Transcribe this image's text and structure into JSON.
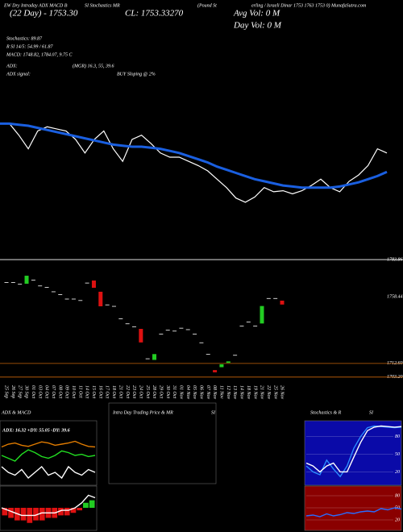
{
  "header": {
    "name_left": "EW Dry Intraday ADX MACD B",
    "name_mid": "SI Stochastics MR",
    "name_pair": "(Pound St",
    "name_right": "erling / Israeli Dinar 1753 1763 1753 0) MunafaSutra.com",
    "day_change": "(22 Day) - 1753.30",
    "close": "CL: 1753.33270",
    "avg_vol": "Avg Vol: 0  M",
    "day_vol": "Day Vol: 0  M"
  },
  "stats": {
    "stochastics": "Stochastics: 89.87",
    "rsi": "R      SI 14/5: 54.99 / 61.87",
    "macd": "MACD: 1748.82, 1784.07, 9.75 C",
    "adx_label": "ADX:",
    "adx_values": "(MGR) 16.3, 55, 39.6",
    "adx_signal_label": "ADX  signal:",
    "adx_signal": "BUY Sloping @ 2%"
  },
  "chart_data": [
    {
      "type": "line",
      "ylim": [
        1700,
        1800
      ],
      "series": [
        {
          "color": "#ffffff",
          "values": [
            1782,
            1782,
            1771,
            1758,
            1775,
            1779,
            1777,
            1775,
            1767,
            1754,
            1767,
            1775,
            1758,
            1746,
            1767,
            1771,
            1763,
            1754,
            1750,
            1750,
            1746,
            1742,
            1737,
            1729,
            1721,
            1711,
            1707,
            1712,
            1721,
            1717,
            1718,
            1715,
            1718,
            1723,
            1729,
            1721,
            1717,
            1727,
            1733,
            1742,
            1758,
            1754
          ]
        },
        {
          "color": "#1a5fe0",
          "values": [
            1782,
            1782,
            1781,
            1780,
            1778,
            1776,
            1774,
            1772,
            1770,
            1768,
            1766,
            1764,
            1762,
            1761,
            1760,
            1760,
            1759,
            1758,
            1756,
            1754,
            1751,
            1748,
            1745,
            1741,
            1738,
            1735,
            1732,
            1729,
            1727,
            1725,
            1723,
            1722,
            1721,
            1721,
            1721,
            1721,
            1722,
            1724,
            1726,
            1729,
            1732,
            1736
          ]
        }
      ]
    },
    {
      "type": "candlestick",
      "ylim": [
        1702,
        1785
      ],
      "categories": [
        "25 Sep",
        "26 Sep",
        "27 Sep",
        "30 Sep",
        "01 Oct",
        "03 Oct",
        "04 Oct",
        "07 Oct",
        "08 Oct",
        "09 Oct",
        "10 Oct",
        "11 Oct",
        "14 Oct",
        "15 Oct",
        "16 Oct",
        "17 Oct",
        "18 Oct",
        "21 Oct",
        "22 Oct",
        "23 Oct",
        "24 Oct",
        "25 Oct",
        "28 Oct",
        "29 Oct",
        "30 Oct",
        "31 Oct",
        "01 Nov",
        "04 Nov",
        "05 Nov",
        "06 Nov",
        "07 Nov",
        "08 Nov",
        "11 Nov",
        "12 Nov",
        "13 Nov",
        "14 Nov",
        "18 Nov",
        "19 Nov",
        "21 Nov",
        "22 Nov",
        "25 Nov",
        "26 Nov"
      ],
      "open": [
        1768.4,
        1768.0,
        1767.3,
        1767.3,
        1770.0,
        1766.0,
        1765.0,
        1762.0,
        1760.0,
        1757.0,
        1757.0,
        1756.0,
        1768.0,
        1769.5,
        1761.8,
        1753.0,
        1752.0,
        1743.5,
        1740.0,
        1738.0,
        1736.3,
        1716.0,
        1715.0,
        1733.0,
        1735.2,
        1735.0,
        1737.0,
        1736.0,
        1733.0,
        1727.0,
        1719.0,
        1708.0,
        1710.0,
        1713.0,
        1718.0,
        1738.0,
        1740.8,
        1738.0,
        1740.0,
        1757.0,
        1757.4,
        1755.7
      ],
      "close": [
        1768.0,
        1768.4,
        1767.0,
        1772.8,
        1769.6,
        1765.6,
        1764.6,
        1761.7,
        1759.6,
        1756.6,
        1756.6,
        1755.6,
        1767.6,
        1764.5,
        1751.8,
        1752.6,
        1751.6,
        1743.1,
        1739.6,
        1737.6,
        1727.0,
        1715.6,
        1719.0,
        1732.6,
        1735.6,
        1734.6,
        1736.6,
        1735.6,
        1732.6,
        1726.6,
        1718.6,
        1706.5,
        1712.0,
        1714.0,
        1718.4,
        1738.4,
        1741.2,
        1738.4,
        1752.0,
        1757.4,
        1757.0,
        1753.0
      ],
      "up_color": "#22cc22",
      "down_color": "#dd1111",
      "flat_color": "#ffffff",
      "yticks": [
        {
          "value": 1783.86,
          "label": "1783.86"
        },
        {
          "value": 1758.44,
          "label": "1758.44"
        },
        {
          "value": 1712.6,
          "label": "1712.60"
        },
        {
          "value": 1703.2,
          "label": "1703.20"
        }
      ],
      "hlines": [
        {
          "value": 1783.86,
          "color": "#ffffff"
        },
        {
          "value": 1712.6,
          "color": "#c8650a"
        },
        {
          "value": 1703.2,
          "color": "#c8650a"
        }
      ]
    },
    {
      "type": "line",
      "title": "ADX  & MACD",
      "annotation": "ADX: 16.32 +DY: 55.05 -DY: 39.6",
      "ylim": [
        0,
        100
      ],
      "series": [
        {
          "color": "#22dd22",
          "values": [
            50,
            45,
            40,
            52,
            60,
            55,
            48,
            45,
            50,
            58,
            55,
            50,
            52,
            48,
            50
          ]
        },
        {
          "color": "#e07b00",
          "values": [
            65,
            70,
            72,
            68,
            66,
            70,
            74,
            72,
            68,
            70,
            72,
            75,
            70,
            66,
            65
          ]
        },
        {
          "color": "#ffffff",
          "values": [
            30,
            20,
            15,
            25,
            10,
            20,
            30,
            15,
            20,
            10,
            30,
            20,
            15,
            25,
            20
          ]
        }
      ]
    },
    {
      "type": "bar",
      "ylim": [
        -8,
        8
      ],
      "up_color": "#22cc22",
      "down_color": "#dd1111",
      "values": [
        -3,
        -4,
        -5,
        -5,
        -6,
        -5,
        -5,
        -4,
        -4,
        -3,
        -3,
        -2,
        -1,
        2,
        3
      ],
      "series": [
        {
          "color": "#ffffff",
          "values": [
            0,
            -1,
            -2,
            -3,
            -3,
            -3,
            -2,
            -2,
            -2,
            -1,
            -1,
            0,
            2,
            5,
            4
          ]
        }
      ]
    },
    {
      "type": "empty",
      "title": "Intra Day Trading Price  & MR",
      "title2": "SI"
    },
    {
      "type": "line",
      "title": "Stochastics & R",
      "title2": "SI",
      "background": "#0a0aa8",
      "ylim": [
        0,
        100
      ],
      "yticks": [
        80,
        50,
        20
      ],
      "series": [
        {
          "color": "#2a8cff",
          "values": [
            30,
            20,
            15,
            40,
            25,
            12,
            30,
            60,
            80,
            95,
            98,
            97,
            96,
            95,
            96
          ]
        },
        {
          "color": "#ffffff",
          "values": [
            35,
            30,
            20,
            30,
            35,
            20,
            20,
            45,
            70,
            90,
            96,
            98,
            97,
            96,
            97
          ]
        }
      ]
    },
    {
      "type": "line",
      "background": "#8a0000",
      "ylim": [
        0,
        100
      ],
      "yticks": [
        80,
        50,
        20
      ],
      "series": [
        {
          "color": "#2a6cff",
          "values": [
            30,
            32,
            28,
            35,
            30,
            33,
            38,
            36,
            40,
            42,
            40,
            48,
            45,
            50,
            47
          ]
        }
      ]
    }
  ]
}
